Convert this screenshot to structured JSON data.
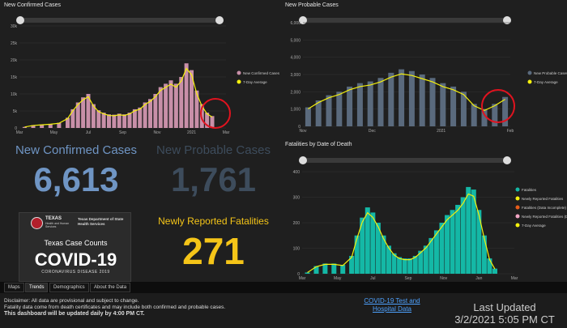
{
  "panels": {
    "confirmed_title": "New Confirmed Cases",
    "probable_title": "New Probable Cases",
    "fatalities_title": "Fatalities by Date of Death"
  },
  "kpis": {
    "confirmed_label": "New Confirmed Cases",
    "confirmed_value": "6,613",
    "probable_label": "New Probable Cases",
    "probable_value": "1,761",
    "fatal_label": "Newly Reported Fatalities",
    "fatal_value": "271"
  },
  "banner": {
    "org1": "TEXAS",
    "org2": "Health and Human Services",
    "org3": "Texas Department of State Health Services",
    "line1": "Texas Case Counts",
    "line2": "COVID-19",
    "line3": "CORONAVIRUS DISEASE 2019"
  },
  "tabs": [
    "Maps",
    "Trends",
    "Demographics",
    "About the Data"
  ],
  "active_tab": "Trends",
  "footer": {
    "disclaimer1": "Disclaimer: All data are provisional and subject to change.",
    "disclaimer2": "Fatality data come from death certificates and may include both confirmed and probable cases.",
    "disclaimer3": "This dashboard will be updated daily by 4:00 PM CT.",
    "link": "COVID-19 Test and Hospital Data",
    "updated_label": "Last Updated",
    "updated_value": "3/2/2021 5:05 PM CT"
  },
  "colors": {
    "confirmed_bar": "#c88fa8",
    "probable_bar": "#5a6a7d",
    "fatal_bar": "#14b8a6",
    "avg_line": "#f5f10d",
    "kpi_blue": "#6f95c4",
    "kpi_grey": "#3d4c5c",
    "kpi_yellow": "#f5c518",
    "highlight": "#e0131f"
  },
  "chart_data": [
    {
      "type": "bar",
      "title": "New Confirmed Cases",
      "x_ticks": [
        "Mar",
        "May",
        "Jul",
        "Sep",
        "Nov",
        "2021",
        "Mar"
      ],
      "y_ticks": [
        "0",
        "5k",
        "10k",
        "15k",
        "20k",
        "25k",
        "30k"
      ],
      "ylim": [
        0,
        30000
      ],
      "xlim": [
        0,
        12
      ],
      "legend": [
        "New Confirmed Cases",
        "7-Day Average"
      ],
      "series": [
        {
          "x": [
            0.3,
            0.8,
            1.3,
            1.8,
            2.3,
            2.8,
            3.1,
            3.4,
            3.7,
            4.0,
            4.3,
            4.6,
            4.9,
            5.2,
            5.5,
            5.8,
            6.1,
            6.4,
            6.7,
            7.0,
            7.3,
            7.6,
            7.9,
            8.2,
            8.5,
            8.8,
            9.1,
            9.4,
            9.7,
            10.0,
            10.3,
            10.6,
            10.9,
            11.2
          ],
          "values": [
            300,
            800,
            1000,
            1200,
            1500,
            3000,
            5500,
            7500,
            9000,
            10000,
            7000,
            5200,
            4500,
            4000,
            3900,
            4200,
            4000,
            4500,
            5500,
            6000,
            7500,
            8500,
            10000,
            12000,
            13000,
            14000,
            13000,
            15000,
            19000,
            17000,
            11000,
            7000,
            4500,
            3500
          ]
        }
      ]
    },
    {
      "type": "bar",
      "title": "New Probable Cases",
      "x_ticks": [
        "Nov",
        "Dec",
        "2021",
        "Feb"
      ],
      "y_ticks": [
        "0",
        "1,000",
        "2,000",
        "3,000",
        "4,000",
        "5,000",
        "6,000"
      ],
      "ylim": [
        0,
        6000
      ],
      "xlim": [
        0,
        4
      ],
      "legend": [
        "New Probable Cases",
        "7-Day Average"
      ],
      "series": [
        {
          "x": [
            0.1,
            0.3,
            0.5,
            0.7,
            0.9,
            1.1,
            1.3,
            1.5,
            1.7,
            1.9,
            2.1,
            2.3,
            2.5,
            2.7,
            2.9,
            3.1,
            3.3,
            3.5,
            3.7,
            3.9
          ],
          "values": [
            1100,
            1500,
            1800,
            2000,
            2300,
            2500,
            2600,
            2800,
            3100,
            3300,
            3200,
            3000,
            2800,
            2500,
            2300,
            2000,
            1300,
            1000,
            1300,
            1700
          ]
        }
      ]
    },
    {
      "type": "bar",
      "title": "Fatalities by Date of Death",
      "x_ticks": [
        "Mar",
        "May",
        "Jul",
        "Sep",
        "Nov",
        "Jan",
        "Mar"
      ],
      "y_ticks": [
        "0",
        "100",
        "200",
        "300",
        "400"
      ],
      "ylim": [
        0,
        400
      ],
      "xlim": [
        0,
        12
      ],
      "legend": [
        "Fatalities",
        "Newly Reported Fatalities",
        "Fatalities (Data Incomplete)",
        "Newly Reported Fatalities (Data Incomplete)",
        "7-Day Average"
      ],
      "series": [
        {
          "x": [
            0.3,
            0.8,
            1.3,
            1.8,
            2.3,
            2.8,
            3.1,
            3.4,
            3.7,
            4.0,
            4.3,
            4.6,
            4.9,
            5.2,
            5.5,
            5.8,
            6.1,
            6.4,
            6.7,
            7.0,
            7.3,
            7.6,
            7.9,
            8.2,
            8.5,
            8.8,
            9.1,
            9.4,
            9.7,
            10.0,
            10.3,
            10.6,
            10.9
          ],
          "values": [
            5,
            30,
            40,
            40,
            35,
            70,
            150,
            220,
            260,
            240,
            200,
            150,
            110,
            80,
            65,
            60,
            60,
            70,
            90,
            110,
            140,
            170,
            200,
            230,
            250,
            270,
            300,
            340,
            330,
            250,
            150,
            60,
            20
          ]
        }
      ]
    }
  ]
}
